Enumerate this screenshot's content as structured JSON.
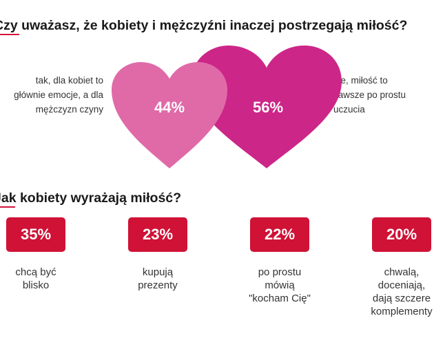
{
  "colors": {
    "accent": "#d3103a",
    "heart_left": "#e06aa8",
    "heart_right": "#cc2688",
    "badge": "#cf1236"
  },
  "question1": {
    "title": "Czy uważasz, że kobiety i mężczyźni inaczej postrzegają miłość?"
  },
  "question2": {
    "title": "Jak kobiety wyrażają miłość?"
  },
  "chart_data": [
    {
      "type": "pie",
      "title": "Czy uważasz, że kobiety i mężczyźni inaczej postrzegają miłość?",
      "categories": [
        "tak, dla kobiet to\ngłównie emocje, a dla\nmężczyzn czyny",
        "nie, miłość to\nzawsze po prostu\nuczucia"
      ],
      "values": [
        44,
        56
      ],
      "value_labels": [
        "44%",
        "56%"
      ]
    },
    {
      "type": "bar",
      "title": "Jak kobiety wyrażają miłość?",
      "categories": [
        "chcą być\nblisko",
        "kupują\nprezenty",
        "po prostu\nmówią\n\"kocham Cię\"",
        "chwalą,\ndoceniają,\ndają szczere\nkomplementy"
      ],
      "values": [
        35,
        23,
        22,
        20
      ],
      "value_labels": [
        "35%",
        "23%",
        "22%",
        "20%"
      ]
    }
  ]
}
